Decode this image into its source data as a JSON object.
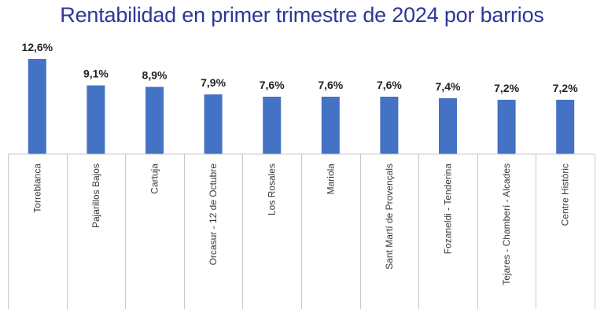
{
  "chart_data": {
    "type": "bar",
    "title": "Rentabilidad en primer trimestre de 2024 por barrios",
    "xlabel": "",
    "ylabel": "",
    "categories": [
      "Torreblanca",
      "Pajarillos Bajos",
      "Cartuja",
      "Orcasur - 12 de Octubre",
      "Los Rosales",
      "Mariola",
      "Sant Martí de Provençals",
      "Fozaneldi - Tenderina",
      "Tejares - Chamberí - Alcades",
      "Centre Històric"
    ],
    "values": [
      12.6,
      9.1,
      8.9,
      7.9,
      7.6,
      7.6,
      7.6,
      7.4,
      7.2,
      7.2
    ],
    "data_labels": [
      "12,6%",
      "9,1%",
      "8,9%",
      "7,9%",
      "7,6%",
      "7,6%",
      "7,6%",
      "7,4%",
      "7,2%",
      "7,2%"
    ],
    "ylim": [
      0,
      12.6
    ],
    "grid": false,
    "legend": "none",
    "bar_color": "#4472c4",
    "title_color": "#2f3699"
  }
}
